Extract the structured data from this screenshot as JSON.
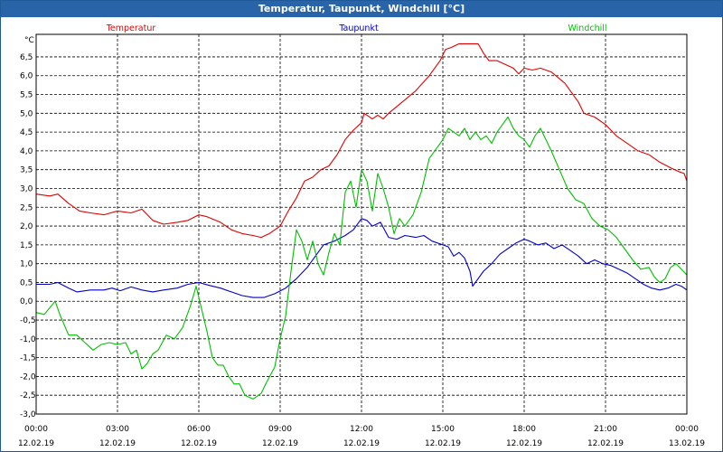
{
  "window": {
    "title": "Temperatur, Taupunkt, Windchill [°C]"
  },
  "colors": {
    "title_bg": "#2a64a8",
    "temperatur": "#e00000",
    "taupunkt": "#0000cc",
    "windchill": "#00c000",
    "grid": "#000000"
  },
  "chart_data": {
    "type": "line",
    "title": "Temperatur, Taupunkt, Windchill [°C]",
    "ylabel": "°C",
    "xlabel": "",
    "xlim": [
      0,
      24
    ],
    "ylim": [
      -3.0,
      7.1
    ],
    "grid": true,
    "legend_position": "top",
    "y_ticks": [
      {
        "v": 6.5,
        "label": "6,5"
      },
      {
        "v": 6.0,
        "label": "6,0"
      },
      {
        "v": 5.5,
        "label": "5,5"
      },
      {
        "v": 5.0,
        "label": "5,0"
      },
      {
        "v": 4.5,
        "label": "4,5"
      },
      {
        "v": 4.0,
        "label": "4,0"
      },
      {
        "v": 3.5,
        "label": "3,5"
      },
      {
        "v": 3.0,
        "label": "3,0"
      },
      {
        "v": 2.5,
        "label": "2,5"
      },
      {
        "v": 2.0,
        "label": "2,0"
      },
      {
        "v": 1.5,
        "label": "1,5"
      },
      {
        "v": 1.0,
        "label": "1,0"
      },
      {
        "v": 0.5,
        "label": "0,5"
      },
      {
        "v": 0.0,
        "label": "0,0"
      },
      {
        "v": -0.5,
        "label": "-0,5"
      },
      {
        "v": -1.0,
        "label": "-1,0"
      },
      {
        "v": -1.5,
        "label": "-1,5"
      },
      {
        "v": -2.0,
        "label": "-2,0"
      },
      {
        "v": -2.5,
        "label": "-2,5"
      },
      {
        "v": -3.0,
        "label": "-3,0"
      }
    ],
    "x_ticks": [
      {
        "h": 0,
        "time": "00:00",
        "date": "12.02.19"
      },
      {
        "h": 3,
        "time": "03:00",
        "date": "12.02.19"
      },
      {
        "h": 6,
        "time": "06:00",
        "date": "12.02.19"
      },
      {
        "h": 9,
        "time": "09:00",
        "date": "12.02.19"
      },
      {
        "h": 12,
        "time": "12:00",
        "date": "12.02.19"
      },
      {
        "h": 15,
        "time": "15:00",
        "date": "12.02.19"
      },
      {
        "h": 18,
        "time": "18:00",
        "date": "12.02.19"
      },
      {
        "h": 21,
        "time": "21:00",
        "date": "12.02.19"
      },
      {
        "h": 24,
        "time": "00:00",
        "date": "13.02.19"
      }
    ],
    "series": [
      {
        "name": "Temperatur",
        "color": "#e00000",
        "points": [
          [
            0,
            2.85
          ],
          [
            0.5,
            2.8
          ],
          [
            0.8,
            2.85
          ],
          [
            1.2,
            2.6
          ],
          [
            1.6,
            2.4
          ],
          [
            2,
            2.35
          ],
          [
            2.5,
            2.3
          ],
          [
            3,
            2.4
          ],
          [
            3.5,
            2.35
          ],
          [
            3.9,
            2.45
          ],
          [
            4.3,
            2.15
          ],
          [
            4.7,
            2.05
          ],
          [
            5.2,
            2.1
          ],
          [
            5.6,
            2.15
          ],
          [
            6,
            2.3
          ],
          [
            6.3,
            2.25
          ],
          [
            6.8,
            2.1
          ],
          [
            7.2,
            1.9
          ],
          [
            7.6,
            1.8
          ],
          [
            8,
            1.75
          ],
          [
            8.3,
            1.7
          ],
          [
            8.6,
            1.8
          ],
          [
            9,
            2.0
          ],
          [
            9.3,
            2.4
          ],
          [
            9.6,
            2.75
          ],
          [
            9.9,
            3.2
          ],
          [
            10.2,
            3.3
          ],
          [
            10.5,
            3.5
          ],
          [
            10.8,
            3.6
          ],
          [
            11.1,
            3.9
          ],
          [
            11.4,
            4.3
          ],
          [
            11.7,
            4.55
          ],
          [
            12,
            4.75
          ],
          [
            12.1,
            5.0
          ],
          [
            12.4,
            4.85
          ],
          [
            12.6,
            4.95
          ],
          [
            12.8,
            4.85
          ],
          [
            13,
            5.0
          ],
          [
            13.5,
            5.3
          ],
          [
            14,
            5.6
          ],
          [
            14.5,
            6.0
          ],
          [
            14.9,
            6.4
          ],
          [
            15.1,
            6.7
          ],
          [
            15.3,
            6.75
          ],
          [
            15.6,
            6.85
          ],
          [
            16,
            6.85
          ],
          [
            16.3,
            6.85
          ],
          [
            16.5,
            6.6
          ],
          [
            16.7,
            6.4
          ],
          [
            17,
            6.4
          ],
          [
            17.3,
            6.3
          ],
          [
            17.6,
            6.2
          ],
          [
            17.8,
            6.05
          ],
          [
            18,
            6.2
          ],
          [
            18.3,
            6.15
          ],
          [
            18.6,
            6.2
          ],
          [
            19,
            6.1
          ],
          [
            19.5,
            5.8
          ],
          [
            20,
            5.3
          ],
          [
            20.2,
            5.0
          ],
          [
            20.6,
            4.9
          ],
          [
            21,
            4.7
          ],
          [
            21.4,
            4.4
          ],
          [
            21.8,
            4.2
          ],
          [
            22.2,
            4.0
          ],
          [
            22.6,
            3.9
          ],
          [
            23,
            3.7
          ],
          [
            23.4,
            3.55
          ],
          [
            23.7,
            3.45
          ],
          [
            23.9,
            3.4
          ],
          [
            24,
            3.2
          ]
        ]
      },
      {
        "name": "Taupunkt",
        "color": "#0000cc",
        "points": [
          [
            0,
            0.45
          ],
          [
            0.5,
            0.45
          ],
          [
            0.8,
            0.5
          ],
          [
            1.2,
            0.35
          ],
          [
            1.5,
            0.25
          ],
          [
            2,
            0.3
          ],
          [
            2.5,
            0.3
          ],
          [
            2.8,
            0.35
          ],
          [
            3.1,
            0.28
          ],
          [
            3.5,
            0.38
          ],
          [
            3.9,
            0.3
          ],
          [
            4.3,
            0.25
          ],
          [
            4.7,
            0.3
          ],
          [
            5.2,
            0.35
          ],
          [
            5.6,
            0.45
          ],
          [
            6,
            0.5
          ],
          [
            6.4,
            0.42
          ],
          [
            6.8,
            0.35
          ],
          [
            7.2,
            0.25
          ],
          [
            7.6,
            0.15
          ],
          [
            8,
            0.1
          ],
          [
            8.4,
            0.1
          ],
          [
            8.8,
            0.2
          ],
          [
            9.2,
            0.35
          ],
          [
            9.6,
            0.6
          ],
          [
            10,
            0.9
          ],
          [
            10.3,
            1.2
          ],
          [
            10.6,
            1.5
          ],
          [
            11,
            1.6
          ],
          [
            11.4,
            1.75
          ],
          [
            11.7,
            1.9
          ],
          [
            12,
            2.2
          ],
          [
            12.2,
            2.15
          ],
          [
            12.4,
            2.0
          ],
          [
            12.7,
            2.1
          ],
          [
            13,
            1.7
          ],
          [
            13.3,
            1.65
          ],
          [
            13.6,
            1.75
          ],
          [
            14,
            1.7
          ],
          [
            14.3,
            1.75
          ],
          [
            14.6,
            1.6
          ],
          [
            15,
            1.5
          ],
          [
            15.2,
            1.45
          ],
          [
            15.4,
            1.2
          ],
          [
            15.6,
            1.3
          ],
          [
            15.8,
            1.15
          ],
          [
            16,
            0.8
          ],
          [
            16.1,
            0.4
          ],
          [
            16.3,
            0.6
          ],
          [
            16.5,
            0.8
          ],
          [
            16.8,
            1.0
          ],
          [
            17.1,
            1.25
          ],
          [
            17.4,
            1.4
          ],
          [
            17.7,
            1.55
          ],
          [
            18,
            1.65
          ],
          [
            18.2,
            1.6
          ],
          [
            18.5,
            1.5
          ],
          [
            18.8,
            1.55
          ],
          [
            19.1,
            1.4
          ],
          [
            19.4,
            1.5
          ],
          [
            19.7,
            1.35
          ],
          [
            20,
            1.2
          ],
          [
            20.3,
            1.0
          ],
          [
            20.6,
            1.1
          ],
          [
            20.9,
            1.0
          ],
          [
            21.2,
            0.95
          ],
          [
            21.5,
            0.85
          ],
          [
            21.8,
            0.75
          ],
          [
            22.1,
            0.6
          ],
          [
            22.4,
            0.45
          ],
          [
            22.7,
            0.35
          ],
          [
            23,
            0.3
          ],
          [
            23.3,
            0.35
          ],
          [
            23.6,
            0.45
          ],
          [
            23.8,
            0.4
          ],
          [
            24,
            0.3
          ]
        ]
      },
      {
        "name": "Windchill",
        "color": "#00c000",
        "points": [
          [
            0,
            -0.3
          ],
          [
            0.3,
            -0.35
          ],
          [
            0.7,
            0.0
          ],
          [
            0.9,
            -0.4
          ],
          [
            1.2,
            -0.9
          ],
          [
            1.5,
            -0.9
          ],
          [
            1.8,
            -1.1
          ],
          [
            2.1,
            -1.3
          ],
          [
            2.4,
            -1.15
          ],
          [
            2.7,
            -1.1
          ],
          [
            3.0,
            -1.15
          ],
          [
            3.3,
            -1.1
          ],
          [
            3.5,
            -1.4
          ],
          [
            3.7,
            -1.3
          ],
          [
            3.9,
            -1.8
          ],
          [
            4.1,
            -1.65
          ],
          [
            4.3,
            -1.4
          ],
          [
            4.5,
            -1.3
          ],
          [
            4.8,
            -0.9
          ],
          [
            5.1,
            -1.0
          ],
          [
            5.4,
            -0.7
          ],
          [
            5.7,
            -0.1
          ],
          [
            5.9,
            0.4
          ],
          [
            6.1,
            -0.2
          ],
          [
            6.3,
            -0.8
          ],
          [
            6.5,
            -1.5
          ],
          [
            6.7,
            -1.7
          ],
          [
            6.9,
            -1.7
          ],
          [
            7.1,
            -2.0
          ],
          [
            7.3,
            -2.2
          ],
          [
            7.5,
            -2.2
          ],
          [
            7.7,
            -2.5
          ],
          [
            8.0,
            -2.6
          ],
          [
            8.3,
            -2.45
          ],
          [
            8.5,
            -2.15
          ],
          [
            8.8,
            -1.75
          ],
          [
            9.0,
            -1.0
          ],
          [
            9.2,
            -0.4
          ],
          [
            9.4,
            0.8
          ],
          [
            9.6,
            1.9
          ],
          [
            9.8,
            1.6
          ],
          [
            10.0,
            1.1
          ],
          [
            10.2,
            1.6
          ],
          [
            10.4,
            1.0
          ],
          [
            10.6,
            0.7
          ],
          [
            10.8,
            1.3
          ],
          [
            11.0,
            1.8
          ],
          [
            11.2,
            1.5
          ],
          [
            11.4,
            2.9
          ],
          [
            11.6,
            3.2
          ],
          [
            11.8,
            2.5
          ],
          [
            12.0,
            3.5
          ],
          [
            12.2,
            3.2
          ],
          [
            12.4,
            2.4
          ],
          [
            12.6,
            3.4
          ],
          [
            12.8,
            3.0
          ],
          [
            13.0,
            2.5
          ],
          [
            13.2,
            1.8
          ],
          [
            13.4,
            2.2
          ],
          [
            13.6,
            2.0
          ],
          [
            13.9,
            2.3
          ],
          [
            14.2,
            2.9
          ],
          [
            14.5,
            3.8
          ],
          [
            14.8,
            4.1
          ],
          [
            15.0,
            4.3
          ],
          [
            15.2,
            4.6
          ],
          [
            15.4,
            4.5
          ],
          [
            15.6,
            4.4
          ],
          [
            15.8,
            4.6
          ],
          [
            16.0,
            4.3
          ],
          [
            16.2,
            4.5
          ],
          [
            16.4,
            4.3
          ],
          [
            16.6,
            4.4
          ],
          [
            16.8,
            4.2
          ],
          [
            17.0,
            4.5
          ],
          [
            17.2,
            4.7
          ],
          [
            17.4,
            4.9
          ],
          [
            17.6,
            4.6
          ],
          [
            17.8,
            4.4
          ],
          [
            18.0,
            4.3
          ],
          [
            18.2,
            4.1
          ],
          [
            18.4,
            4.4
          ],
          [
            18.6,
            4.6
          ],
          [
            18.8,
            4.3
          ],
          [
            19.0,
            4.0
          ],
          [
            19.3,
            3.5
          ],
          [
            19.6,
            3.0
          ],
          [
            19.9,
            2.7
          ],
          [
            20.2,
            2.6
          ],
          [
            20.5,
            2.2
          ],
          [
            20.8,
            2.0
          ],
          [
            21.1,
            1.9
          ],
          [
            21.4,
            1.7
          ],
          [
            21.7,
            1.4
          ],
          [
            22.0,
            1.1
          ],
          [
            22.3,
            0.85
          ],
          [
            22.6,
            0.9
          ],
          [
            22.8,
            0.65
          ],
          [
            23.0,
            0.5
          ],
          [
            23.2,
            0.6
          ],
          [
            23.4,
            0.9
          ],
          [
            23.6,
            1.0
          ],
          [
            23.8,
            0.85
          ],
          [
            24.0,
            0.7
          ]
        ]
      }
    ]
  }
}
